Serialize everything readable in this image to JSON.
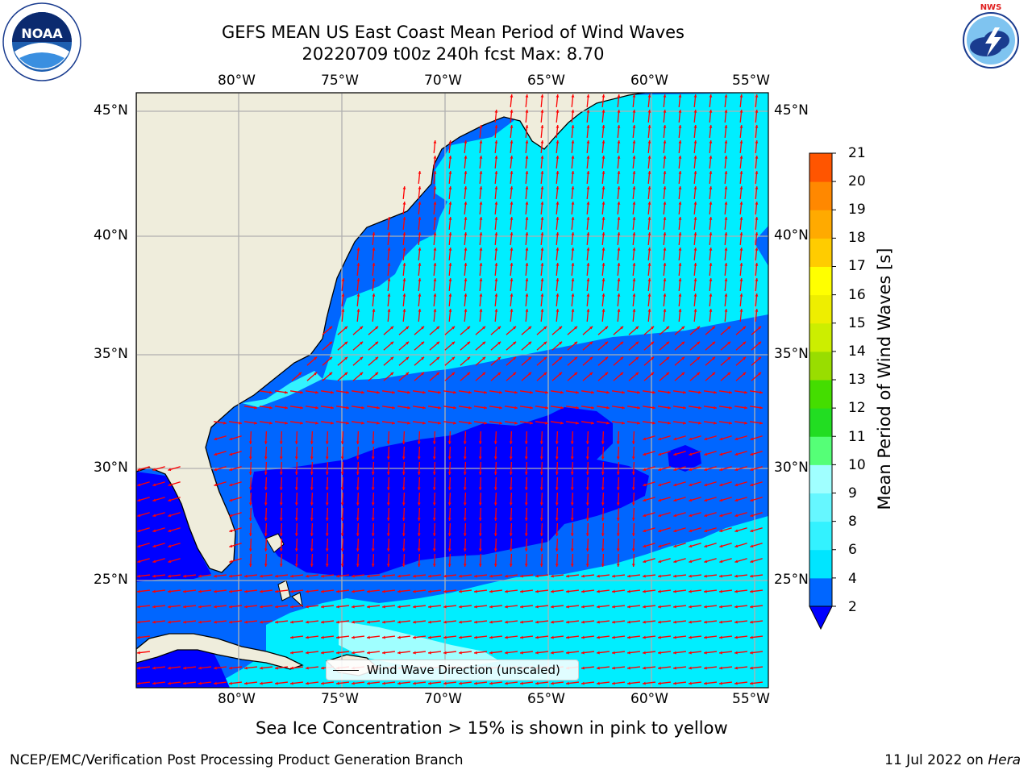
{
  "header": {
    "title_line1": "GEFS MEAN US East Coast Mean Period of Wind Waves",
    "title_line2": "20220709 t00z 240h fcst   Max: 8.70"
  },
  "logos": {
    "left": "NOAA",
    "left_ring_text": "NATIONAL OCEANIC AND ATMOSPHERIC ADMINISTRATION · U.S. DEPARTMENT OF COMMERCE",
    "right_ring_text": "NATIONAL WEATHER SERVICE"
  },
  "axes": {
    "lon_labels": [
      "80°W",
      "75°W",
      "70°W",
      "65°W",
      "60°W",
      "55°W"
    ],
    "lat_labels": [
      "45°N",
      "40°N",
      "35°N",
      "30°N",
      "25°N"
    ]
  },
  "colorbar": {
    "label": "Mean Period of Wind Waves [s]",
    "ticks": [
      "2",
      "4",
      "6",
      "8",
      "9",
      "10",
      "11",
      "12",
      "13",
      "14",
      "15",
      "16",
      "17",
      "18",
      "19",
      "20",
      "21"
    ],
    "colors": [
      "#0066ff",
      "#00e5ff",
      "#33f2ff",
      "#66f7ff",
      "#a0ffff",
      "#55ff77",
      "#22dd22",
      "#44dd00",
      "#99dd00",
      "#ccee00",
      "#eeee00",
      "#ffff00",
      "#ffcc00",
      "#ffaa00",
      "#ff8800",
      "#ff5500",
      "#ff2200",
      "#ff0000"
    ],
    "under_color": "#0000ff"
  },
  "map": {
    "land_color": "#efeddc",
    "arrow_color": "#ff0000"
  },
  "legend": {
    "label": "Wind Wave Direction (unscaled)"
  },
  "notes": {
    "sea_ice": "Sea Ice Concentration > 15% is shown in pink to yellow"
  },
  "footer": {
    "left": "NCEP/EMC/Verification Post Processing Product Generation Branch",
    "date": "11 Jul 2022 on ",
    "host": "Hera"
  }
}
